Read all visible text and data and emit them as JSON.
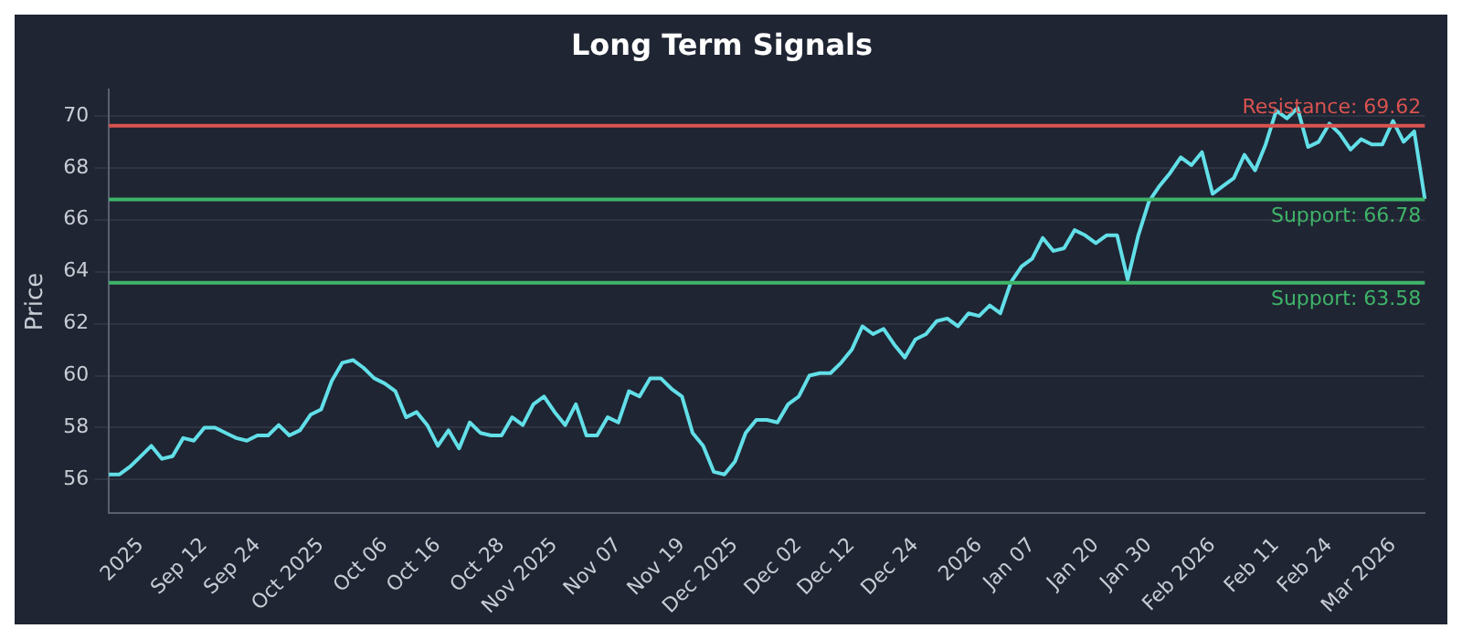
{
  "chart_data": {
    "type": "line",
    "title": "Long Term Signals",
    "ylabel": "Price",
    "categories": [
      null,
      null,
      null,
      "2025",
      null,
      null,
      null,
      null,
      null,
      "Sep 12",
      null,
      null,
      null,
      null,
      "Sep 24",
      null,
      null,
      null,
      null,
      null,
      "Oct 2025",
      null,
      null,
      null,
      null,
      null,
      "Oct 06",
      null,
      null,
      null,
      null,
      "Oct 16",
      null,
      null,
      null,
      null,
      null,
      "Oct 28",
      null,
      null,
      null,
      null,
      "Nov 2025",
      null,
      null,
      null,
      null,
      null,
      "Nov 07",
      null,
      null,
      null,
      null,
      null,
      "Nov 19",
      null,
      null,
      null,
      null,
      "Dec 2025",
      null,
      null,
      null,
      null,
      null,
      "Dec 02",
      null,
      null,
      null,
      null,
      "Dec 12",
      null,
      null,
      null,
      null,
      null,
      "Dec 24",
      null,
      null,
      null,
      null,
      null,
      "2026",
      null,
      null,
      null,
      null,
      "Jan 07",
      null,
      null,
      null,
      null,
      null,
      "Jan 20",
      null,
      null,
      null,
      null,
      "Jan 30",
      null,
      null,
      null,
      null,
      null,
      "Feb 2026",
      null,
      null,
      null,
      null,
      null,
      "Feb 11",
      null,
      null,
      null,
      null,
      "Feb 24",
      null,
      null,
      null,
      null,
      null,
      "Mar 2026",
      null,
      null,
      null
    ],
    "series": [
      {
        "color": "#62dfe8",
        "values": [
          56.2,
          56.2,
          56.5,
          56.9,
          57.3,
          56.8,
          56.9,
          57.6,
          57.5,
          58.0,
          58.0,
          57.8,
          57.6,
          57.5,
          57.7,
          57.7,
          58.1,
          57.7,
          57.9,
          58.5,
          58.7,
          59.8,
          60.5,
          60.6,
          60.3,
          59.9,
          59.7,
          59.4,
          58.4,
          58.6,
          58.1,
          57.3,
          57.9,
          57.2,
          58.2,
          57.8,
          57.7,
          57.7,
          58.4,
          58.1,
          58.9,
          59.2,
          58.6,
          58.1,
          58.9,
          57.7,
          57.7,
          58.4,
          58.2,
          59.4,
          59.2,
          59.9,
          59.9,
          59.5,
          59.2,
          57.8,
          57.3,
          56.3,
          56.2,
          56.7,
          57.8,
          58.3,
          58.3,
          58.2,
          58.9,
          59.2,
          60.0,
          60.1,
          60.1,
          60.5,
          61.0,
          61.9,
          61.6,
          61.8,
          61.2,
          60.7,
          61.4,
          61.6,
          62.1,
          62.2,
          61.9,
          62.4,
          62.3,
          62.7,
          62.4,
          63.6,
          64.2,
          64.5,
          65.3,
          64.8,
          64.9,
          65.6,
          65.4,
          65.1,
          65.4,
          65.4,
          63.7,
          65.4,
          66.7,
          67.3,
          67.8,
          68.4,
          68.1,
          68.6,
          67.0,
          67.3,
          67.6,
          68.5,
          67.9,
          68.9,
          70.2,
          69.9,
          70.3,
          68.8,
          69.0,
          69.7,
          69.3,
          68.7,
          69.1,
          68.9,
          68.9,
          69.8,
          69.0,
          69.4,
          66.8
        ]
      }
    ],
    "ylim": [
      54.7,
      71.0
    ],
    "yticks": [
      56,
      58,
      60,
      62,
      64,
      66,
      68,
      70
    ],
    "grid": "y",
    "legend": false,
    "marker": "none",
    "line_style": "solid",
    "ref_lines": [
      {
        "axis": "y",
        "value": 69.62,
        "label": "Resistance: 69.62",
        "color": "#d9534f"
      },
      {
        "axis": "y",
        "value": 66.78,
        "label": "Support: 66.78",
        "color": "#3fb468"
      },
      {
        "axis": "y",
        "value": 63.58,
        "label": "Support: 63.58",
        "color": "#3fb468"
      }
    ]
  }
}
